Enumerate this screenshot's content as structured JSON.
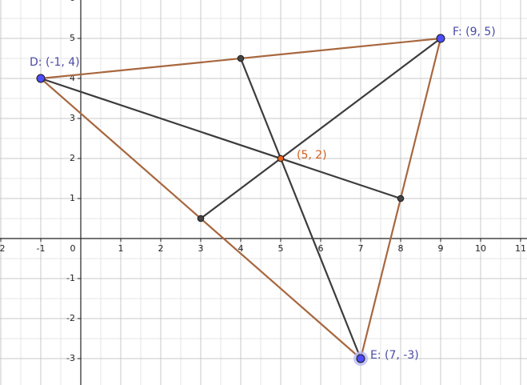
{
  "chart_data": {
    "type": "scatter",
    "xlim": [
      -2.02,
      11.16
    ],
    "ylim": [
      -3.66,
      5.96
    ],
    "xticks": [
      -2,
      -1,
      0,
      1,
      2,
      3,
      4,
      5,
      6,
      7,
      8,
      9,
      10,
      11
    ],
    "yticks": [
      -3,
      -2,
      -1,
      1,
      2,
      3,
      4,
      5,
      6
    ],
    "grid": true,
    "segments": [
      {
        "color": "#a8673f",
        "x": [
          -1,
          9
        ],
        "y": [
          4,
          5
        ]
      },
      {
        "color": "#a8673f",
        "x": [
          9,
          7
        ],
        "y": [
          5,
          -3
        ]
      },
      {
        "color": "#a8673f",
        "x": [
          7,
          -1
        ],
        "y": [
          -3,
          4
        ]
      },
      {
        "color": "#3c3c3c",
        "x": [
          -1,
          8
        ],
        "y": [
          4,
          1
        ]
      },
      {
        "color": "#3c3c3c",
        "x": [
          9,
          3
        ],
        "y": [
          5,
          0.5
        ]
      },
      {
        "color": "#3c3c3c",
        "x": [
          7,
          4
        ],
        "y": [
          -3,
          4.5
        ]
      }
    ],
    "points": [
      {
        "label": "D: (-1, 4)",
        "x": -1,
        "y": 4,
        "color": "#4d4dff"
      },
      {
        "label": "F: (9, 5)",
        "x": 9,
        "y": 5,
        "color": "#4d4dff"
      },
      {
        "label": "E: (7, -3)",
        "x": 7,
        "y": -3,
        "color": "#4d4dff"
      },
      {
        "label": "(5, 2)",
        "x": 5,
        "y": 2,
        "color": "#e8601c"
      },
      {
        "x": 4,
        "y": 4.5,
        "color": "#444444"
      },
      {
        "x": 3,
        "y": 0.5,
        "color": "#444444"
      },
      {
        "x": 8,
        "y": 1,
        "color": "#444444"
      }
    ]
  }
}
